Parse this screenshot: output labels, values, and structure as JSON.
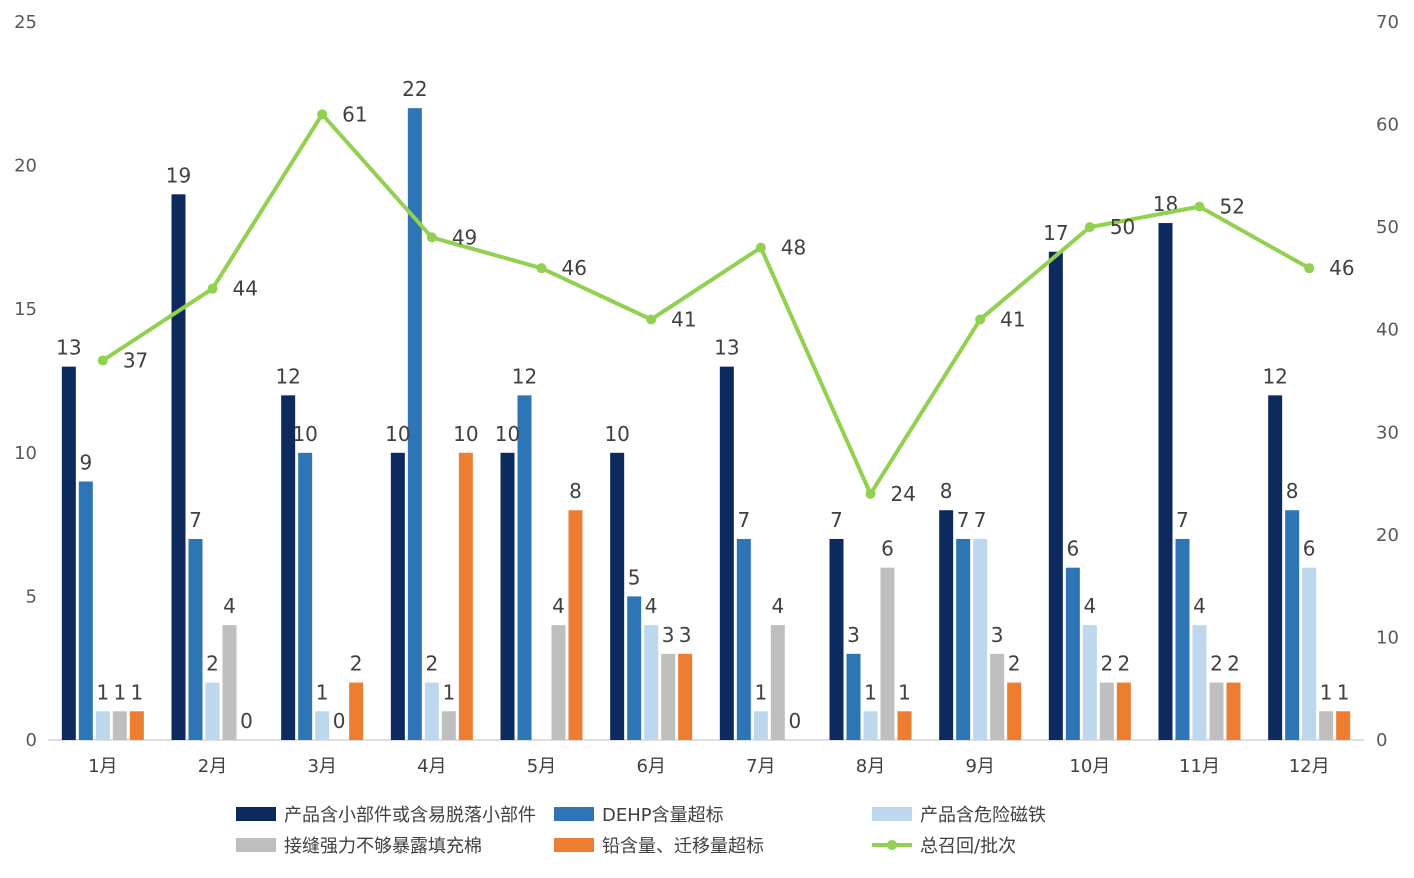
{
  "chart_data": {
    "type": "bar",
    "categories": [
      "1月",
      "2月",
      "3月",
      "4月",
      "5月",
      "6月",
      "7月",
      "8月",
      "9月",
      "10月",
      "11月",
      "12月"
    ],
    "series": [
      {
        "name": "产品含小部件或含易脱落小部件",
        "type": "bar",
        "axis": "left",
        "color": "#0d2a5e",
        "values": [
          13,
          19,
          12,
          10,
          10,
          10,
          13,
          7,
          8,
          17,
          18,
          12
        ]
      },
      {
        "name": "DEHP含量超标",
        "type": "bar",
        "axis": "left",
        "color": "#2e75b6",
        "values": [
          9,
          7,
          10,
          22,
          12,
          5,
          7,
          3,
          7,
          6,
          7,
          8
        ]
      },
      {
        "name": "产品含危险磁铁",
        "type": "bar",
        "axis": "left",
        "color": "#bdd7ee",
        "values": [
          1,
          2,
          1,
          2,
          null,
          4,
          1,
          1,
          7,
          4,
          4,
          6
        ]
      },
      {
        "name": "接缝强力不够暴露填充棉",
        "type": "bar",
        "axis": "left",
        "color": "#bfbfbf",
        "values": [
          1,
          4,
          0,
          1,
          4,
          3,
          4,
          6,
          3,
          2,
          2,
          1
        ]
      },
      {
        "name": "铅含量、迁移量超标",
        "type": "bar",
        "axis": "left",
        "color": "#ed7d31",
        "values": [
          1,
          0,
          2,
          10,
          8,
          3,
          0,
          1,
          2,
          2,
          2,
          1
        ]
      },
      {
        "name": "总召回/批次",
        "type": "line",
        "axis": "right",
        "color": "#92d050",
        "values": [
          37,
          44,
          61,
          49,
          46,
          41,
          48,
          24,
          41,
          50,
          52,
          46
        ]
      }
    ],
    "y_left": {
      "min": 0,
      "max": 25,
      "ticks": [
        "0",
        "5",
        "10",
        "15",
        "20",
        "25"
      ]
    },
    "y_right": {
      "min": 0,
      "max": 70,
      "ticks": [
        "0",
        "10",
        "20",
        "30",
        "40",
        "50",
        "60",
        "70"
      ]
    },
    "grid": false,
    "legend_position": "bottom"
  }
}
